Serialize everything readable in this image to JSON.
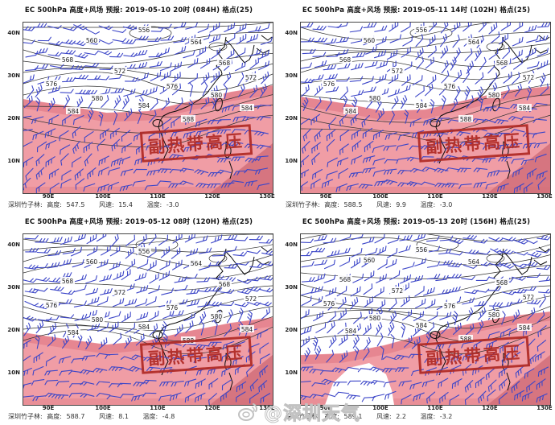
{
  "shared": {
    "lat_labels": [
      "40N",
      "30N",
      "20N",
      "10N"
    ],
    "lon_labels": [
      "90E",
      "100E",
      "110E",
      "120E",
      "130E"
    ],
    "stamp": "副热带高压",
    "station_label": "深圳竹子林:",
    "height_label": "高度:",
    "wind_label": "风速:",
    "temp_label": "温度:",
    "contour_labels": [
      "556",
      "560",
      "564",
      "568",
      "572",
      "576",
      "580",
      "584",
      "588"
    ]
  },
  "panels": [
    {
      "title": "EC 500hPa 高度+风场  预报: 2019-05-10 20时 (084H) 格点(25)",
      "height": "547.5",
      "wind": "15.4",
      "temp": "-3.0"
    },
    {
      "title": "EC 500hPa 高度+风场  预报: 2019-05-11 14时 (102H) 格点(25)",
      "height": "588.5",
      "wind": "9.9",
      "temp": "-3.0"
    },
    {
      "title": "EC 500hPa 高度+风场  预报: 2019-05-12 08时 (120H) 格点(25)",
      "height": "588.7",
      "wind": "8.1",
      "temp": "-4.8"
    },
    {
      "title": "EC 500hPa 高度+风场  预报: 2019-05-13 20时 (156H) 格点(25)",
      "height": "589.1",
      "wind": "2.2",
      "temp": "-3.2"
    }
  ],
  "watermark": {
    "handle": "@深圳天气",
    "icon": "weibo-icon"
  },
  "colors": {
    "shade_light": "#f09da5",
    "shade_mid": "#e4838d",
    "shade_deep": "#cf6c77",
    "stamp_red": "#b02a24",
    "barb_blue": "#3c46c8",
    "contour": "#2f2f2f",
    "coast": "#0a0a0a"
  }
}
